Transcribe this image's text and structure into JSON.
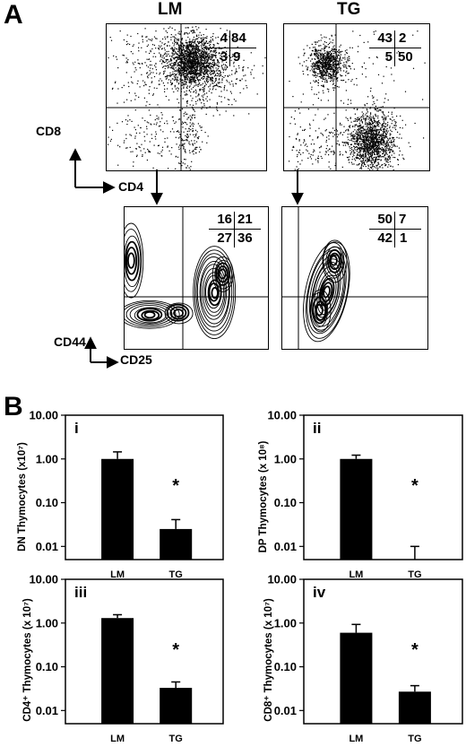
{
  "panelA": {
    "letter": "A",
    "columns": [
      "LM",
      "TG"
    ],
    "top_axes": {
      "y": "CD8",
      "x": "CD4"
    },
    "bottom_axes": {
      "y": "CD44",
      "x": "CD25"
    },
    "quadrants": {
      "lm_top": {
        "ul": "4",
        "ur": "84",
        "ll": "3",
        "lr": "9"
      },
      "tg_top": {
        "ul": "43",
        "ur": "2",
        "ll": "5",
        "lr": "50"
      },
      "lm_bottom": {
        "ul": "16",
        "ur": "21",
        "ll": "27",
        "lr": "36"
      },
      "tg_bottom": {
        "ul": "50",
        "ur": "7",
        "ll": "42",
        "lr": "1"
      }
    }
  },
  "panelB": {
    "letter": "B"
  },
  "chart_data": [
    {
      "type": "bar",
      "panel": "i",
      "ylabel": "DN Thymocytes (x10⁷)",
      "yscale": "log",
      "ylim": [
        0.005,
        10
      ],
      "yticks": [
        "10.00",
        "1.00",
        "0.10",
        "0.01"
      ],
      "categories": [
        "LM",
        "TG"
      ],
      "values": [
        1.0,
        0.025
      ],
      "errors": [
        0.45,
        0.016
      ],
      "annotations": [
        "*"
      ]
    },
    {
      "type": "bar",
      "panel": "ii",
      "ylabel": "DP Thymocytes (x 10⁸)",
      "yscale": "log",
      "ylim": [
        0.005,
        10
      ],
      "yticks": [
        "10.00",
        "1.00",
        "0.10",
        "0.01"
      ],
      "categories": [
        "LM",
        "TG"
      ],
      "values": [
        1.0,
        0.005
      ],
      "errors": [
        0.22,
        0.005
      ],
      "annotations": [
        "*"
      ]
    },
    {
      "type": "bar",
      "panel": "iii",
      "ylabel": "CD4⁺ Thymocytes (x 10⁷)",
      "yscale": "log",
      "ylim": [
        0.005,
        10
      ],
      "yticks": [
        "10.00",
        "1.00",
        "0.10",
        "0.01"
      ],
      "categories": [
        "LM",
        "TG"
      ],
      "values": [
        1.3,
        0.033
      ],
      "errors": [
        0.25,
        0.012
      ],
      "annotations": [
        "*"
      ]
    },
    {
      "type": "bar",
      "panel": "iv",
      "ylabel": "CD8⁺ Thymocytes (x 10⁷)",
      "yscale": "log",
      "ylim": [
        0.005,
        10
      ],
      "yticks": [
        "10.00",
        "1.00",
        "0.10",
        "0.01"
      ],
      "categories": [
        "LM",
        "TG"
      ],
      "values": [
        0.6,
        0.027
      ],
      "errors": [
        0.33,
        0.01
      ],
      "annotations": [
        "*"
      ]
    }
  ]
}
